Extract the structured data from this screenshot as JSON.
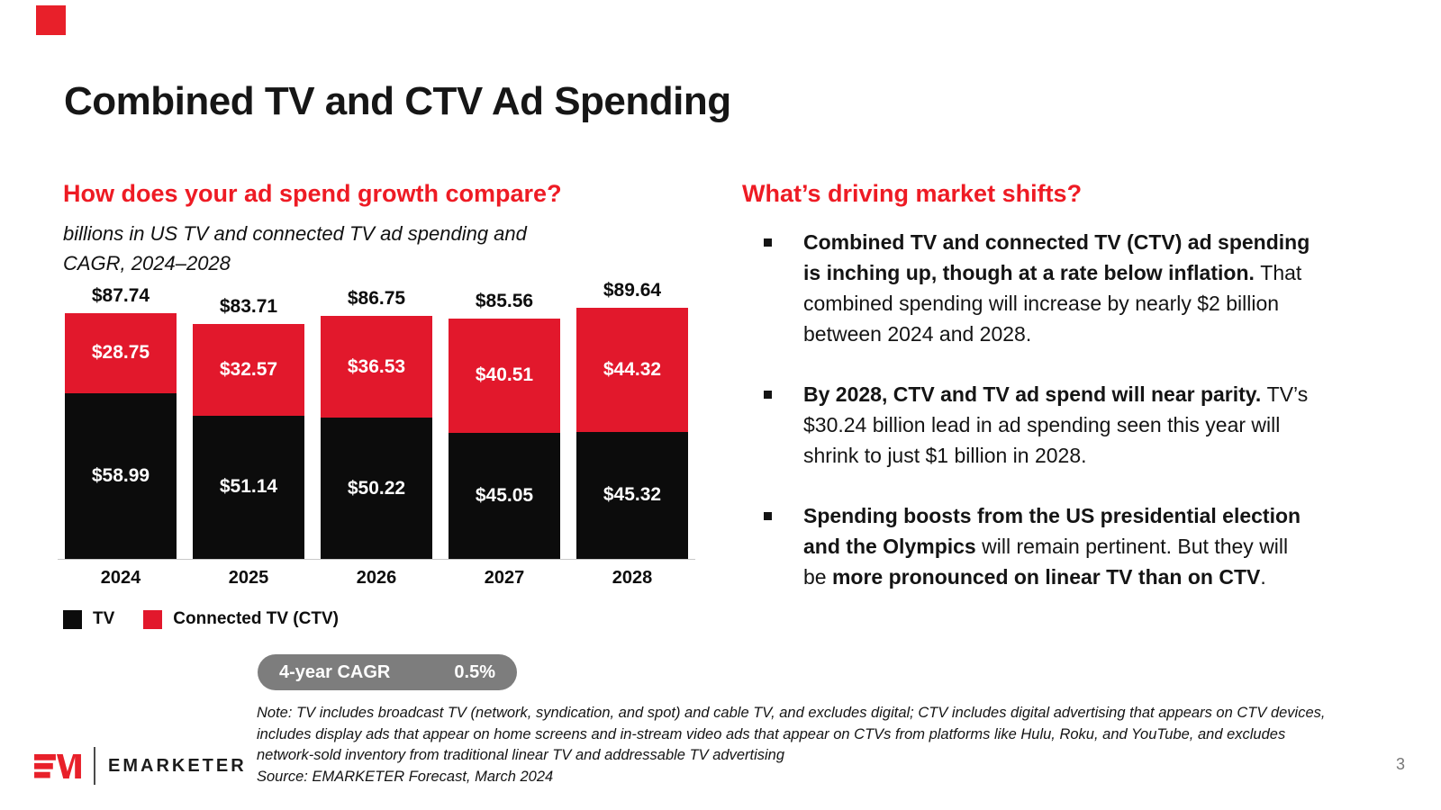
{
  "slide": {
    "title": "Combined TV and CTV Ad Spending",
    "page_number": "3"
  },
  "colors": {
    "accent_red": "#ee1b24",
    "bar_red": "#e2182c",
    "bar_black": "#0c0c0c",
    "pill_gray": "#7d7d7d"
  },
  "left_section": {
    "heading": "How does your ad spend growth compare?",
    "subtitle": "billions in US TV and connected TV ad spending and CAGR, 2024–2028",
    "cagr": {
      "label": "4-year CAGR",
      "value": "0.5%"
    }
  },
  "chart_data": {
    "type": "bar",
    "stacked": true,
    "categories": [
      "2024",
      "2025",
      "2026",
      "2027",
      "2028"
    ],
    "series": [
      {
        "name": "TV",
        "color": "#0c0c0c",
        "values": [
          58.99,
          51.14,
          50.22,
          45.05,
          45.32
        ]
      },
      {
        "name": "Connected TV (CTV)",
        "color": "#e2182c",
        "values": [
          28.75,
          32.57,
          36.53,
          40.51,
          44.32
        ]
      }
    ],
    "totals": [
      87.74,
      83.71,
      86.75,
      85.56,
      89.64
    ],
    "value_prefix": "$",
    "title": "How does your ad spend growth compare?",
    "subtitle": "billions in US TV and connected TV ad spending and CAGR, 2024–2028",
    "xlabel": "",
    "ylabel": "billions in US TV and connected TV ad spending",
    "ylim": [
      0,
      95
    ],
    "grid": false,
    "legend_position": "bottom"
  },
  "legend": [
    {
      "label": "TV",
      "color": "#0c0c0c"
    },
    {
      "label": "Connected TV (CTV)",
      "color": "#e2182c"
    }
  ],
  "right_section": {
    "heading": "What’s driving market shifts?",
    "bullets": [
      {
        "segments": [
          {
            "text": "Combined TV and connected TV (CTV) ad spending is inching up, though at a rate below inflation. ",
            "bold": true
          },
          {
            "text": "That combined spending will increase by nearly $2 billion between 2024 and 2028.",
            "bold": false
          }
        ]
      },
      {
        "segments": [
          {
            "text": "By 2028, CTV and TV ad spend will near parity. ",
            "bold": true
          },
          {
            "text": "TV’s $30.24 billion lead in ad spending seen this year will shrink to just $1 billion in 2028.",
            "bold": false
          }
        ]
      },
      {
        "segments": [
          {
            "text": "Spending boosts from the US presidential election and the Olympics",
            "bold": true
          },
          {
            "text": " will remain pertinent. But they will be ",
            "bold": false
          },
          {
            "text": "more pronounced on linear TV than on CTV",
            "bold": true
          },
          {
            "text": ".",
            "bold": false
          }
        ]
      }
    ]
  },
  "footer": {
    "note": "Note: TV includes broadcast TV (network, syndication, and spot) and cable TV, and excludes digital; CTV includes digital advertising that appears on CTV devices, includes display ads that appear on home screens and in-stream video ads that appear on CTVs from platforms like Hulu, Roku, and YouTube, and excludes network-sold inventory from traditional linear TV and addressable TV advertising",
    "source": "Source: EMARKETER Forecast, March 2024",
    "brand_name": "EMARKETER"
  }
}
